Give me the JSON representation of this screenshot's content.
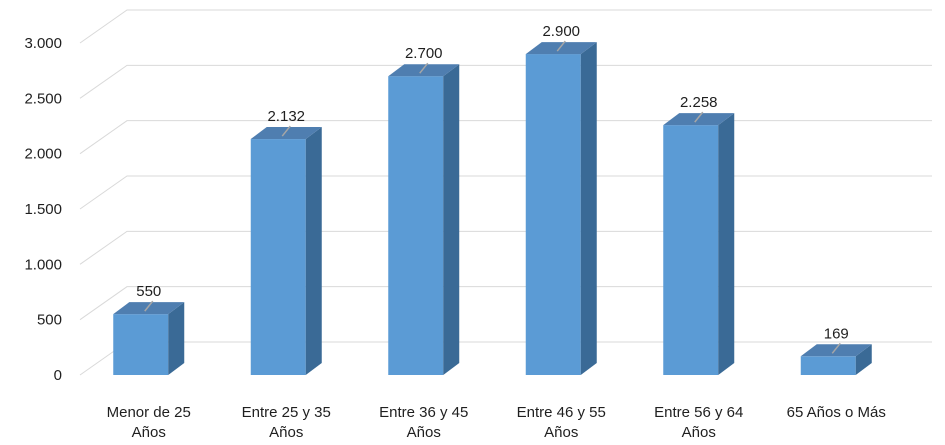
{
  "chart_data": {
    "type": "bar",
    "title": "",
    "xlabel": "",
    "ylabel": "",
    "categories": [
      [
        "Menor de 25",
        "Años"
      ],
      [
        "Entre 25 y 35",
        "Años"
      ],
      [
        "Entre 36 y 45",
        "Años"
      ],
      [
        "Entre 46 y 55",
        "Años"
      ],
      [
        "Entre 56 y 64",
        "Años"
      ],
      [
        "65 Años o Más"
      ]
    ],
    "values": [
      550,
      2132,
      2700,
      2900,
      2258,
      169
    ],
    "value_labels": [
      "550",
      "2.132",
      "2.700",
      "2.900",
      "2.258",
      "169"
    ],
    "ylim": [
      0,
      3000
    ],
    "yticks": [
      0,
      500,
      1000,
      1500,
      2000,
      2500,
      3000
    ],
    "ytick_labels": [
      "0",
      "500",
      "1.000",
      "1.500",
      "2.000",
      "2.500",
      "3.000"
    ],
    "grid": true,
    "style": "3d-column",
    "colors": {
      "front": "#5b9bd5",
      "side": "#3a6a96",
      "top": "#4f7eb0",
      "grid": "#d9d9d9"
    }
  }
}
